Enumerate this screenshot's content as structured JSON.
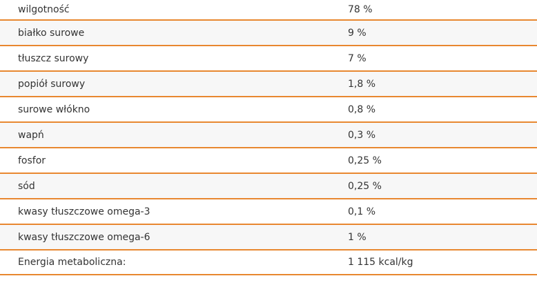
{
  "nutrition_table": {
    "rows": [
      {
        "name": "wilgotność",
        "value": "78 %"
      },
      {
        "name": "białko surowe",
        "value": "9 %"
      },
      {
        "name": "tłuszcz surowy",
        "value": "7 %"
      },
      {
        "name": "popiół surowy",
        "value": "1,8 %"
      },
      {
        "name": "surowe włókno",
        "value": "0,8 %"
      },
      {
        "name": "wapń",
        "value": "0,3 %"
      },
      {
        "name": "fosfor",
        "value": "0,25 %"
      },
      {
        "name": "sód",
        "value": "0,25 %"
      },
      {
        "name": "kwasy tłuszczowe omega-3",
        "value": "0,1 %"
      },
      {
        "name": "kwasy tłuszczowe omega-6",
        "value": "1 %"
      },
      {
        "name": "Energia metaboliczna:",
        "value": "1 115 kcal/kg"
      }
    ]
  },
  "colors": {
    "row_divider": "#e8872f",
    "row_alt_background": "#f7f7f7",
    "text": "#333333"
  }
}
